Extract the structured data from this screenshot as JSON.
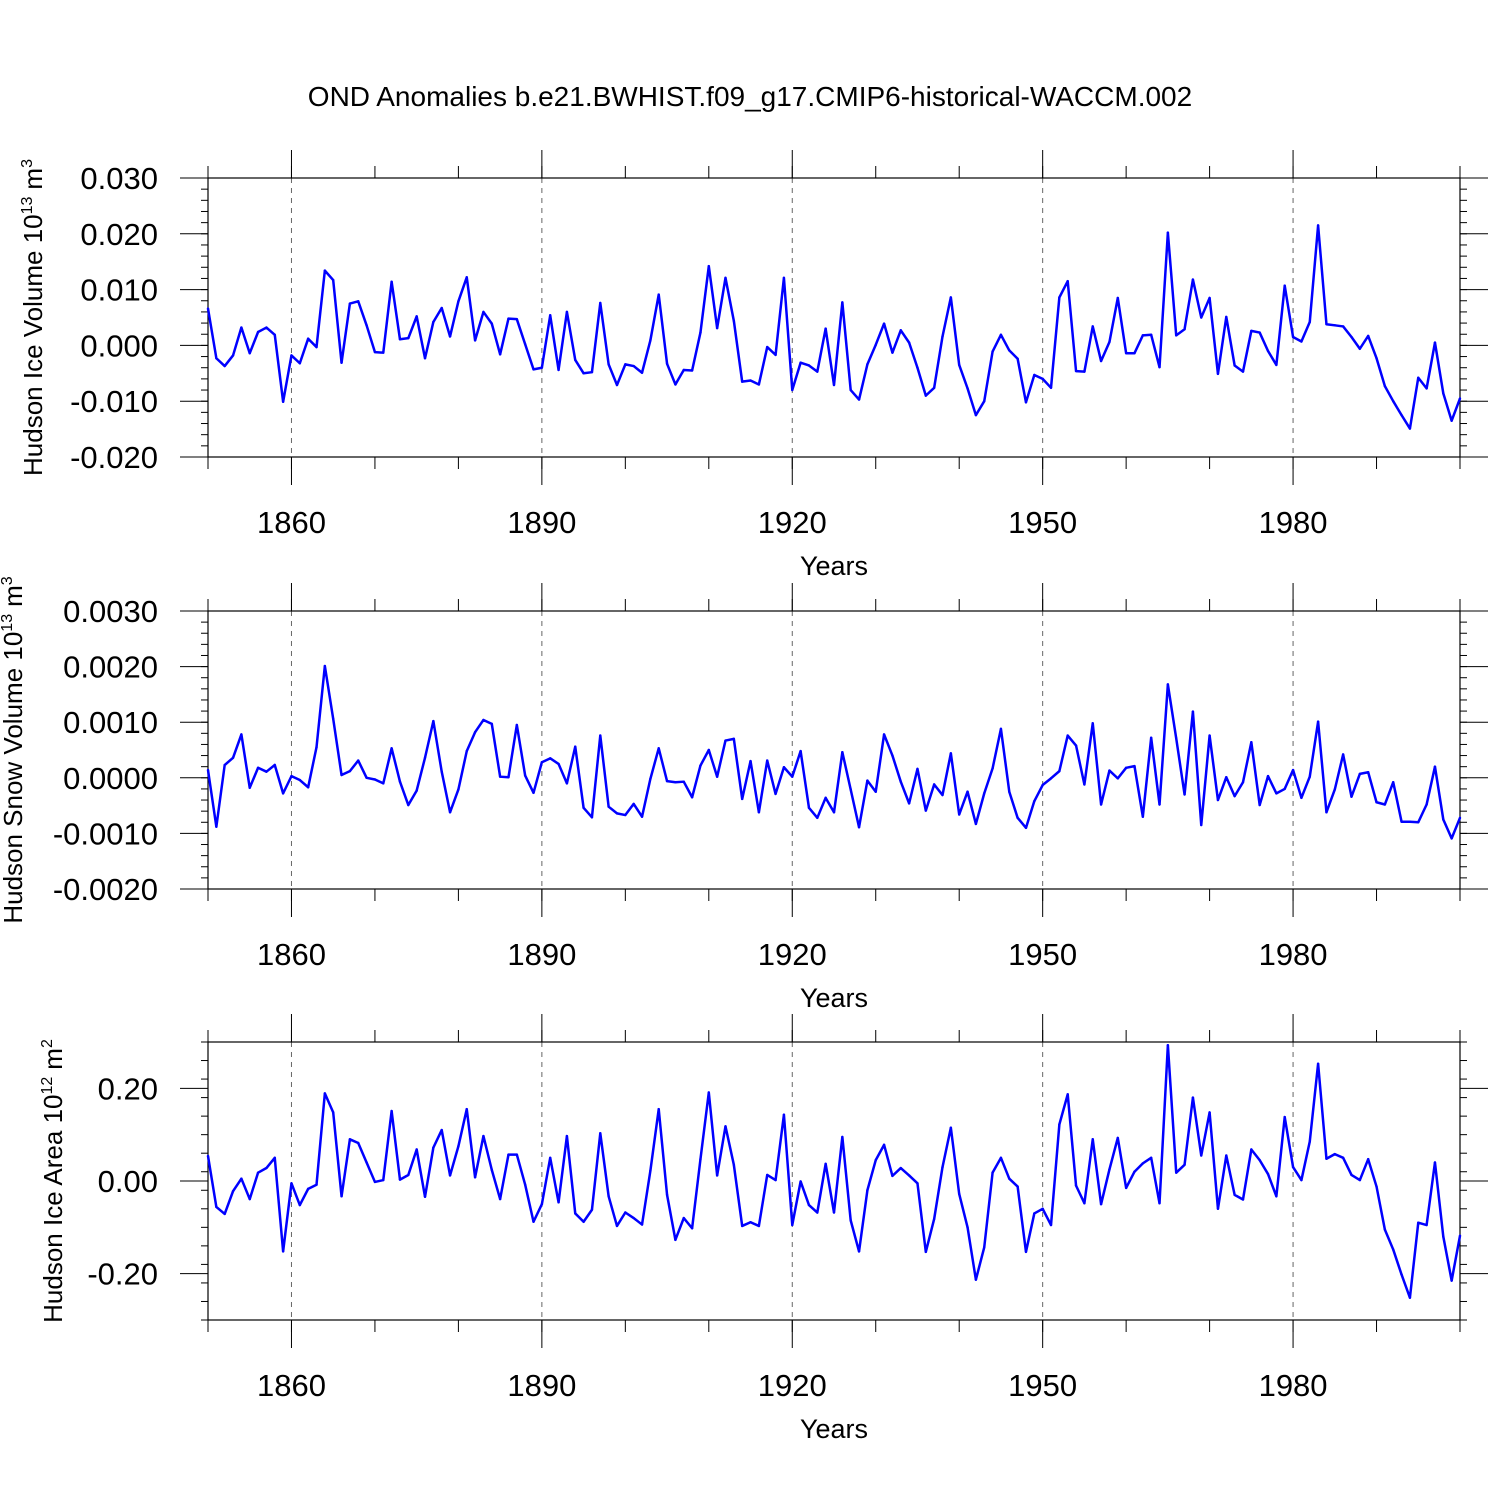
{
  "figure_title": "OND Anomalies b.e21.BWHIST.f09_g17.CMIP6-historical-WACCM.002",
  "chart_data": [
    {
      "type": "line",
      "title": "",
      "ylabel_main": "Hudson Ice Volume 10",
      "ylabel_exp": "13",
      "ylabel_unit": "m",
      "ylabel_unit_exp": "3",
      "xlabel": "Years",
      "line_color": "#0000ff",
      "xlim": [
        1850,
        2000
      ],
      "ylim": [
        -0.02,
        0.03
      ],
      "xticks": [
        1860,
        1890,
        1920,
        1950,
        1980
      ],
      "xtick_labels": [
        "1860",
        "1890",
        "1920",
        "1950",
        "1980"
      ],
      "yticks": [
        0.03,
        0.02,
        0.01,
        0.0,
        -0.01,
        -0.02
      ],
      "ytick_labels": [
        "0.030",
        "0.020",
        "0.010",
        "0.000",
        "-0.010",
        "-0.020"
      ],
      "grid": "dashed vertical at major x ticks",
      "x_start": 1850,
      "values": [
        0.0066,
        -0.0023,
        -0.0037,
        -0.0018,
        0.0032,
        -0.0014,
        0.0024,
        0.0032,
        0.0019,
        -0.0101,
        -0.0018,
        -0.0032,
        0.0012,
        -0.0003,
        0.0134,
        0.0117,
        -0.0031,
        0.0075,
        0.0079,
        0.0036,
        -0.0012,
        -0.0013,
        0.0114,
        0.0011,
        0.0013,
        0.0052,
        -0.0023,
        0.0042,
        0.0067,
        0.0016,
        0.0079,
        0.0122,
        0.0009,
        0.006,
        0.0039,
        -0.0016,
        0.0048,
        0.0047,
        0.0002,
        -0.0043,
        -0.004,
        0.0054,
        -0.0044,
        0.006,
        -0.0026,
        -0.005,
        -0.0048,
        0.0076,
        -0.0034,
        -0.0071,
        -0.0034,
        -0.0037,
        -0.0049,
        0.0009,
        0.0091,
        -0.0033,
        -0.007,
        -0.0044,
        -0.0045,
        0.0023,
        0.0142,
        0.0031,
        0.0121,
        0.0044,
        -0.0065,
        -0.0063,
        -0.007,
        -0.0003,
        -0.0017,
        0.0121,
        -0.008,
        -0.0031,
        -0.0036,
        -0.0047,
        0.003,
        -0.0071,
        0.0077,
        -0.008,
        -0.0097,
        -0.0034,
        0.0001,
        0.0039,
        -0.0013,
        0.0027,
        0.0005,
        -0.004,
        -0.009,
        -0.0076,
        0.0016,
        0.0086,
        -0.0035,
        -0.0077,
        -0.0125,
        -0.01,
        -0.0011,
        0.0019,
        -0.0009,
        -0.0024,
        -0.0102,
        -0.0053,
        -0.006,
        -0.0076,
        0.0086,
        0.0115,
        -0.0046,
        -0.0047,
        0.0034,
        -0.0028,
        0.0006,
        0.0085,
        -0.0014,
        -0.0014,
        0.0018,
        0.0019,
        -0.0039,
        0.0202,
        0.0018,
        0.0029,
        0.0118,
        0.005,
        0.0085,
        -0.0051,
        0.0051,
        -0.0036,
        -0.0047,
        0.0026,
        0.0023,
        -0.001,
        -0.0035,
        0.0107,
        0.0015,
        0.0007,
        0.0042,
        0.0215,
        0.0038,
        0.0036,
        0.0034,
        0.0015,
        -0.0006,
        0.0017,
        -0.0023,
        -0.0073,
        -0.01,
        -0.0125,
        -0.0149,
        -0.0058,
        -0.0077,
        0.0005,
        -0.0086,
        -0.0135,
        -0.0095
      ]
    },
    {
      "type": "line",
      "title": "",
      "ylabel_main": "Hudson Snow Volume 10",
      "ylabel_exp": "13",
      "ylabel_unit": "m",
      "ylabel_unit_exp": "3",
      "xlabel": "Years",
      "line_color": "#0000ff",
      "xlim": [
        1850,
        2000
      ],
      "ylim": [
        -0.002,
        0.003
      ],
      "xticks": [
        1860,
        1890,
        1920,
        1950,
        1980
      ],
      "xtick_labels": [
        "1860",
        "1890",
        "1920",
        "1950",
        "1980"
      ],
      "yticks": [
        0.003,
        0.002,
        0.001,
        0.0,
        -0.001,
        -0.002
      ],
      "ytick_labels": [
        "0.0030",
        "0.0020",
        "0.0010",
        "0.0000",
        "-0.0010",
        "-0.0020"
      ],
      "grid": "dashed vertical at major x ticks",
      "x_start": 1850,
      "values": [
        0.00014,
        -0.00088,
        0.00023,
        0.00036,
        0.00078,
        -0.00018,
        0.00018,
        0.00011,
        0.00023,
        -0.00028,
        3e-05,
        -4e-05,
        -0.00017,
        0.00055,
        0.00201,
        0.00106,
        5e-05,
        0.00012,
        0.00031,
        0.0,
        -3e-05,
        -0.0001,
        0.00053,
        -7e-05,
        -0.00049,
        -0.00023,
        0.00036,
        0.00102,
        0.00011,
        -0.00062,
        -0.00021,
        0.00048,
        0.00082,
        0.00104,
        0.00097,
        2e-05,
        1e-05,
        0.00095,
        4e-05,
        -0.00027,
        0.00028,
        0.00035,
        0.00025,
        -0.0001,
        0.00056,
        -0.00054,
        -0.00071,
        0.00076,
        -0.00052,
        -0.00064,
        -0.00067,
        -0.00047,
        -0.0007,
        -2e-05,
        0.00053,
        -6e-05,
        -8e-05,
        -7e-05,
        -0.00035,
        0.00022,
        0.0005,
        2e-05,
        0.00067,
        0.0007,
        -0.00038,
        0.0003,
        -0.00062,
        0.00031,
        -0.00029,
        0.00019,
        2e-05,
        0.00048,
        -0.00054,
        -0.00072,
        -0.00036,
        -0.00062,
        0.00046,
        -0.00021,
        -0.00089,
        -5e-05,
        -0.00025,
        0.00078,
        0.0004,
        -7e-05,
        -0.00046,
        0.00016,
        -0.00059,
        -0.00012,
        -0.00031,
        0.00044,
        -0.00066,
        -0.00025,
        -0.00083,
        -0.00028,
        0.00017,
        0.00088,
        -0.00025,
        -0.00072,
        -0.0009,
        -0.00042,
        -0.00013,
        -1e-05,
        0.00012,
        0.00076,
        0.00058,
        -0.00012,
        0.00098,
        -0.00048,
        0.00013,
        -1e-05,
        0.00018,
        0.00021,
        -0.0007,
        0.00072,
        -0.00048,
        0.00168,
        0.00071,
        -0.0003,
        0.00119,
        -0.00085,
        0.00076,
        -0.0004,
        1e-05,
        -0.00033,
        -8e-05,
        0.00064,
        -0.00049,
        3e-05,
        -0.00028,
        -0.0002,
        0.00014,
        -0.00036,
        2e-05,
        0.00101,
        -0.00062,
        -0.00021,
        0.00042,
        -0.00034,
        7e-05,
        0.0001,
        -0.00044,
        -0.00048,
        -8e-05,
        -0.00079,
        -0.00079,
        -0.0008,
        -0.00048,
        0.0002,
        -0.00075,
        -0.00109,
        -0.00072
      ]
    },
    {
      "type": "line",
      "title": "",
      "ylabel_main": "Hudson Ice Area 10",
      "ylabel_exp": "12",
      "ylabel_unit": "m",
      "ylabel_unit_exp": "2",
      "xlabel": "Years",
      "line_color": "#0000ff",
      "xlim": [
        1850,
        2000
      ],
      "ylim": [
        -0.3,
        0.3
      ],
      "xticks": [
        1860,
        1890,
        1920,
        1950,
        1980
      ],
      "xtick_labels": [
        "1860",
        "1890",
        "1920",
        "1950",
        "1980"
      ],
      "yticks": [
        0.2,
        0.0,
        -0.2
      ],
      "ytick_labels": [
        "0.20",
        "0.00",
        "-0.20"
      ],
      "grid": "dashed vertical at major x ticks",
      "x_start": 1850,
      "values": [
        0.054,
        -0.056,
        -0.071,
        -0.022,
        0.005,
        -0.039,
        0.018,
        0.028,
        0.05,
        -0.152,
        -0.005,
        -0.052,
        -0.017,
        -0.008,
        0.189,
        0.148,
        -0.033,
        0.09,
        0.082,
        0.04,
        -0.002,
        0.002,
        0.151,
        0.003,
        0.013,
        0.068,
        -0.034,
        0.072,
        0.11,
        0.012,
        0.075,
        0.155,
        0.008,
        0.097,
        0.024,
        -0.039,
        0.057,
        0.057,
        -0.008,
        -0.088,
        -0.05,
        0.05,
        -0.046,
        0.097,
        -0.07,
        -0.088,
        -0.062,
        0.103,
        -0.033,
        -0.097,
        -0.068,
        -0.08,
        -0.094,
        0.022,
        0.155,
        -0.03,
        -0.127,
        -0.08,
        -0.102,
        0.047,
        0.191,
        0.012,
        0.118,
        0.035,
        -0.097,
        -0.089,
        -0.097,
        0.013,
        0.002,
        0.143,
        -0.095,
        -0.001,
        -0.052,
        -0.068,
        0.037,
        -0.068,
        0.095,
        -0.085,
        -0.152,
        -0.02,
        0.045,
        0.078,
        0.011,
        0.028,
        0.012,
        -0.005,
        -0.153,
        -0.082,
        0.03,
        0.115,
        -0.028,
        -0.1,
        -0.213,
        -0.143,
        0.018,
        0.05,
        0.005,
        -0.012,
        -0.153,
        -0.07,
        -0.06,
        -0.095,
        0.122,
        0.187,
        -0.01,
        -0.048,
        0.09,
        -0.05,
        0.025,
        0.093,
        -0.015,
        0.02,
        0.038,
        0.05,
        -0.048,
        0.293,
        0.018,
        0.035,
        0.18,
        0.055,
        0.148,
        -0.06,
        0.055,
        -0.03,
        -0.04,
        0.068,
        0.045,
        0.015,
        -0.033,
        0.138,
        0.03,
        0.002,
        0.085,
        0.253,
        0.048,
        0.058,
        0.05,
        0.013,
        0.002,
        0.047,
        -0.012,
        -0.105,
        -0.148,
        -0.202,
        -0.252,
        -0.09,
        -0.095,
        0.04,
        -0.12,
        -0.215,
        -0.118
      ]
    }
  ]
}
